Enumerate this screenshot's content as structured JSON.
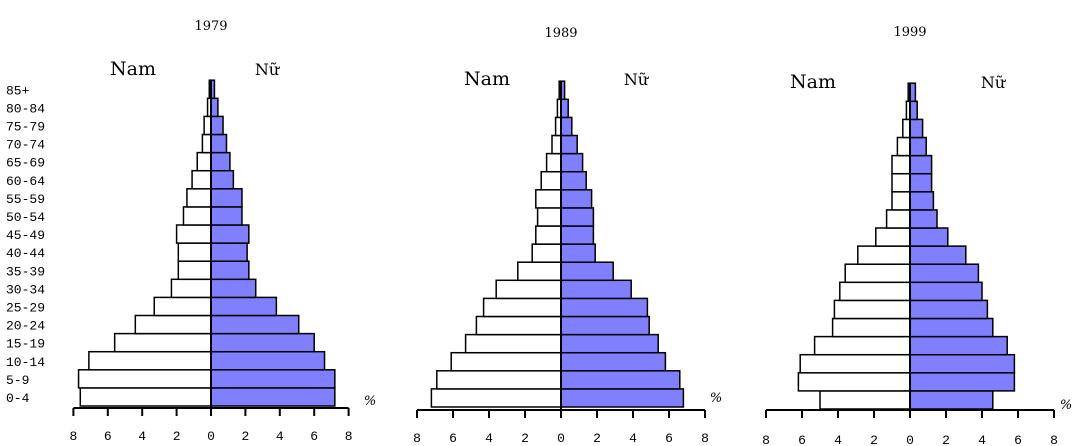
{
  "chart_data": [
    {
      "type": "bar",
      "title": "1979",
      "left_label": "Nam",
      "right_label": "Nữ",
      "unit_label": "%",
      "categories": [
        "0-4",
        "5-9",
        "10-14",
        "15-19",
        "20-24",
        "25-29",
        "30-34",
        "35-39",
        "40-44",
        "45-49",
        "50-54",
        "55-59",
        "60-64",
        "65-69",
        "70-74",
        "75-79",
        "80-84",
        "85+"
      ],
      "xlim": [
        -8,
        8
      ],
      "x_ticks": [
        "8",
        "6",
        "4",
        "2",
        "0",
        "2",
        "4",
        "6",
        "8"
      ],
      "series": [
        {
          "name": "Nam",
          "values": [
            7.6,
            7.7,
            7.1,
            5.6,
            4.4,
            3.3,
            2.3,
            1.9,
            1.9,
            2.0,
            1.6,
            1.4,
            1.1,
            0.8,
            0.5,
            0.4,
            0.2,
            0.1
          ]
        },
        {
          "name": "Nữ",
          "values": [
            7.2,
            7.2,
            6.6,
            6.0,
            5.1,
            3.8,
            2.6,
            2.2,
            2.1,
            2.2,
            1.8,
            1.8,
            1.3,
            1.1,
            0.9,
            0.7,
            0.4,
            0.2
          ]
        }
      ],
      "colors": {
        "Nam": "#ffffff",
        "Nữ": "#8080ff"
      }
    },
    {
      "type": "bar",
      "title": "1989",
      "left_label": "Nam",
      "right_label": "Nữ",
      "unit_label": "%",
      "categories": [
        "0-4",
        "5-9",
        "10-14",
        "15-19",
        "20-24",
        "25-29",
        "30-34",
        "35-39",
        "40-44",
        "45-49",
        "50-54",
        "55-59",
        "60-64",
        "65-69",
        "70-74",
        "75-79",
        "80-84",
        "85+"
      ],
      "xlim": [
        -8,
        8
      ],
      "x_ticks": [
        "8",
        "6",
        "4",
        "2",
        "0",
        "2",
        "4",
        "6",
        "8"
      ],
      "series": [
        {
          "name": "Nam",
          "values": [
            7.2,
            6.9,
            6.1,
            5.3,
            4.7,
            4.3,
            3.6,
            2.4,
            1.6,
            1.4,
            1.3,
            1.4,
            1.1,
            0.8,
            0.5,
            0.3,
            0.2,
            0.1
          ]
        },
        {
          "name": "Nữ",
          "values": [
            6.8,
            6.6,
            5.8,
            5.4,
            4.9,
            4.8,
            3.9,
            2.9,
            1.9,
            1.8,
            1.8,
            1.7,
            1.4,
            1.2,
            0.9,
            0.6,
            0.4,
            0.2
          ]
        }
      ],
      "colors": {
        "Nam": "#ffffff",
        "Nữ": "#8080ff"
      }
    },
    {
      "type": "bar",
      "title": "1999",
      "left_label": "Nam",
      "right_label": "Nữ",
      "unit_label": "%",
      "categories": [
        "0-4",
        "5-9",
        "10-14",
        "15-19",
        "20-24",
        "25-29",
        "30-34",
        "35-39",
        "40-44",
        "45-49",
        "50-54",
        "55-59",
        "60-64",
        "65-69",
        "70-74",
        "75-79",
        "80-84",
        "85+"
      ],
      "xlim": [
        -8,
        8
      ],
      "x_ticks": [
        "8",
        "6",
        "4",
        "2",
        "0",
        "2",
        "4",
        "6",
        "8"
      ],
      "series": [
        {
          "name": "Nam",
          "values": [
            5.0,
            6.2,
            6.1,
            5.3,
            4.3,
            4.2,
            3.9,
            3.6,
            2.9,
            1.9,
            1.3,
            1.0,
            1.0,
            1.0,
            0.7,
            0.4,
            0.2,
            0.1
          ]
        },
        {
          "name": "Nữ",
          "values": [
            4.6,
            5.8,
            5.8,
            5.4,
            4.6,
            4.3,
            4.0,
            3.8,
            3.1,
            2.1,
            1.5,
            1.3,
            1.2,
            1.2,
            0.9,
            0.7,
            0.4,
            0.3
          ]
        }
      ],
      "colors": {
        "Nam": "#ffffff",
        "Nữ": "#8080ff"
      }
    }
  ]
}
